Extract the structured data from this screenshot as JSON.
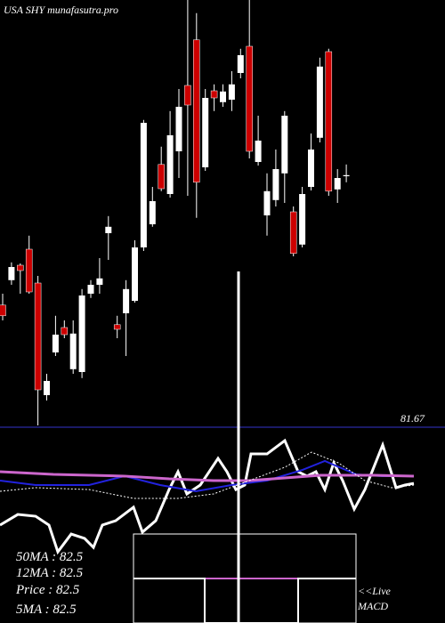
{
  "chart_data": [
    {
      "type": "candlestick",
      "title": "USA SHY munafasutra.pro",
      "open": [
        82.013,
        82.083,
        82.125,
        82.17,
        82.075,
        81.76,
        81.88,
        81.95,
        81.833,
        81.825,
        82.045,
        82.07,
        82.215,
        81.958,
        81.99,
        82.025,
        82.175,
        82.24,
        82.408,
        82.325,
        82.445,
        82.63,
        82.758,
        82.4,
        82.615,
        82.583,
        82.59,
        82.665,
        82.74,
        82.415,
        82.265,
        82.308,
        82.383,
        82.275,
        82.183,
        82.345,
        82.483,
        82.725,
        82.338,
        82.375
      ],
      "high": [
        82.045,
        82.133,
        82.13,
        82.208,
        82.095,
        81.82,
        81.983,
        81.97,
        81.97,
        82.058,
        82.083,
        82.145,
        82.263,
        81.983,
        82.083,
        82.195,
        82.533,
        82.345,
        82.458,
        82.558,
        82.62,
        82.87,
        82.833,
        82.62,
        82.633,
        82.633,
        82.67,
        82.733,
        82.87,
        82.545,
        82.383,
        82.45,
        82.558,
        82.29,
        82.345,
        82.495,
        82.708,
        82.733,
        82.395,
        82.408
      ],
      "low": [
        81.97,
        82.07,
        82.045,
        82.045,
        81.675,
        81.745,
        81.87,
        81.92,
        81.82,
        81.808,
        82.033,
        82.045,
        82.14,
        81.92,
        81.87,
        82.02,
        82.165,
        82.233,
        82.333,
        82.315,
        82.37,
        82.32,
        82.258,
        82.39,
        82.558,
        82.57,
        82.558,
        82.65,
        82.425,
        82.405,
        82.208,
        82.29,
        82.3,
        82.15,
        82.175,
        82.335,
        82.47,
        82.32,
        82.3,
        82.358
      ],
      "close": [
        81.983,
        82.12,
        82.11,
        82.05,
        81.775,
        81.8,
        81.93,
        81.93,
        81.933,
        82.04,
        82.07,
        82.088,
        82.233,
        81.945,
        82.058,
        82.175,
        82.525,
        82.305,
        82.34,
        82.49,
        82.57,
        82.575,
        82.358,
        82.595,
        82.595,
        82.613,
        82.633,
        82.715,
        82.445,
        82.475,
        82.333,
        82.395,
        82.545,
        82.158,
        82.325,
        82.45,
        82.683,
        82.333,
        82.37,
        82.378
      ],
      "up_color": "#ffffff",
      "down_color": "#cc0000",
      "ylim": [
        81.645,
        82.87
      ],
      "last_price_line": 81.67,
      "line_color": "#1a1a66"
    },
    {
      "type": "line",
      "xlim": [
        0,
        100
      ],
      "ylim": [
        0,
        100
      ],
      "series": [
        {
          "color": "#ffffff",
          "dash": false,
          "width": 3,
          "x": [
            0,
            4,
            8,
            11,
            13,
            16,
            19,
            21,
            23,
            26,
            30,
            32,
            35,
            38,
            40,
            42,
            45,
            47,
            49,
            51,
            53,
            55,
            56.4,
            60,
            64,
            67,
            69,
            71,
            73,
            75,
            77,
            79.6,
            82,
            86,
            89,
            91,
            93
          ],
          "values": [
            28.6,
            37.1,
            35.7,
            28.6,
            7.1,
            21.4,
            17.9,
            10.7,
            28.6,
            32.1,
            42.9,
            22.9,
            32.1,
            57.1,
            71.4,
            53.6,
            60.7,
            71.4,
            82.1,
            71.4,
            57.1,
            60.7,
            85.7,
            85.7,
            96.4,
            71.4,
            67.9,
            71.4,
            57.1,
            78.6,
            64.3,
            41.4,
            57.1,
            92.9,
            58.6,
            60.7,
            62.1
          ]
        },
        {
          "color": "#2222dd",
          "dash": false,
          "width": 2,
          "x": [
            0,
            8,
            20,
            28,
            36,
            44,
            52,
            60,
            68,
            73,
            80,
            86,
            93
          ],
          "values": [
            64.3,
            60.7,
            60.7,
            67.9,
            60.7,
            55.7,
            60.7,
            64.3,
            72.9,
            80,
            69.3,
            67.9,
            67.9
          ]
        },
        {
          "color": "#cc66cc",
          "dash": false,
          "width": 3,
          "x": [
            0,
            12,
            28,
            38,
            48,
            56,
            64,
            72,
            84,
            93
          ],
          "values": [
            71.4,
            69.3,
            67.9,
            65.7,
            64.3,
            64.3,
            66.4,
            68.6,
            68.6,
            67.9
          ]
        },
        {
          "color": "#ffffff",
          "dash": true,
          "width": 1,
          "x": [
            0,
            8,
            20,
            30,
            40,
            48,
            56,
            64,
            70,
            76,
            82,
            88,
            93
          ],
          "values": [
            55.7,
            58.6,
            57.1,
            50,
            50,
            53.6,
            64.3,
            75,
            87.1,
            78.6,
            64.3,
            58.6,
            60.7
          ]
        }
      ],
      "labels": [
        "50MA : 82.5",
        "12MA : 82.5",
        "Price  : 82.5",
        "5MA : 82.5"
      ],
      "macd_label": [
        "<<Live",
        "MACD"
      ]
    }
  ]
}
